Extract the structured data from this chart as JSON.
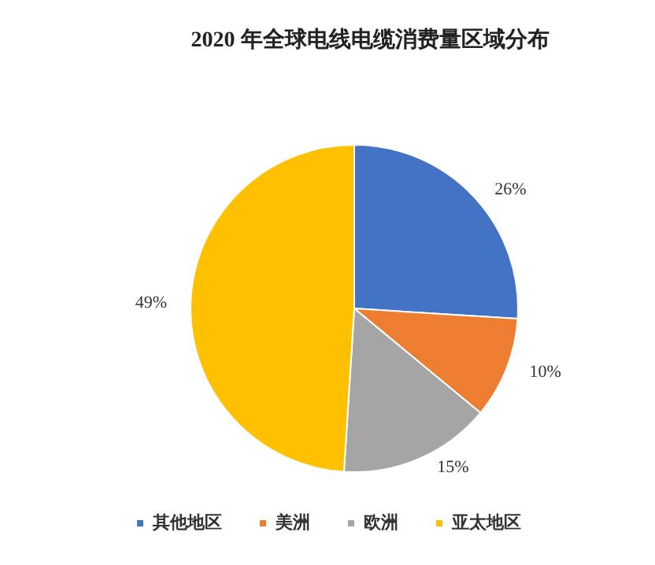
{
  "chart_data": {
    "type": "pie",
    "title": "2020 年全球电线电缆消费量区域分布",
    "categories": [
      "其他地区",
      "美洲",
      "欧洲",
      "亚太地区"
    ],
    "values": [
      26,
      10,
      15,
      49
    ],
    "colors": [
      "#4472c4",
      "#ed7d31",
      "#a5a5a5",
      "#ffc000"
    ],
    "value_labels": [
      "26%",
      "10%",
      "15%",
      "49%"
    ],
    "legend": "bottom"
  }
}
